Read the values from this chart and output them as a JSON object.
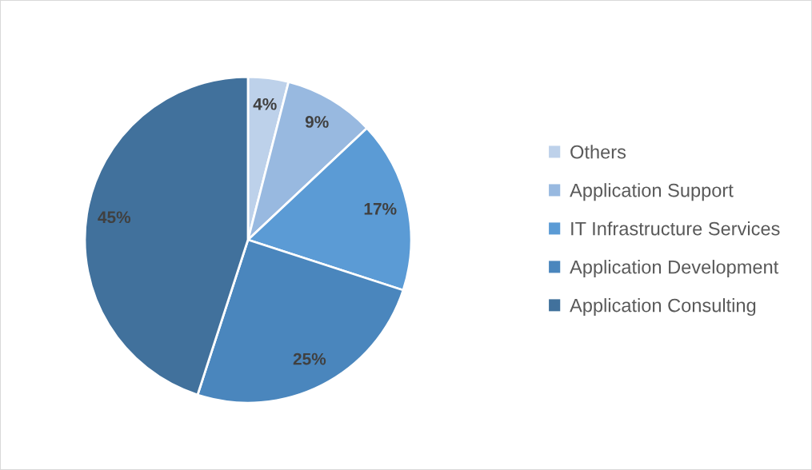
{
  "chart_data": {
    "type": "pie",
    "categories": [
      "Others",
      "Application Support",
      "IT Infrastructure Services",
      "Application Development",
      "Application Consulting"
    ],
    "values": [
      4,
      9,
      17,
      25,
      45
    ],
    "colors": [
      "#bdd1ea",
      "#98b9e0",
      "#5b9bd5",
      "#4a86bd",
      "#41719c"
    ],
    "value_labels": [
      "4%",
      "9%",
      "17%",
      "25%",
      "45%"
    ],
    "legend": "right"
  }
}
